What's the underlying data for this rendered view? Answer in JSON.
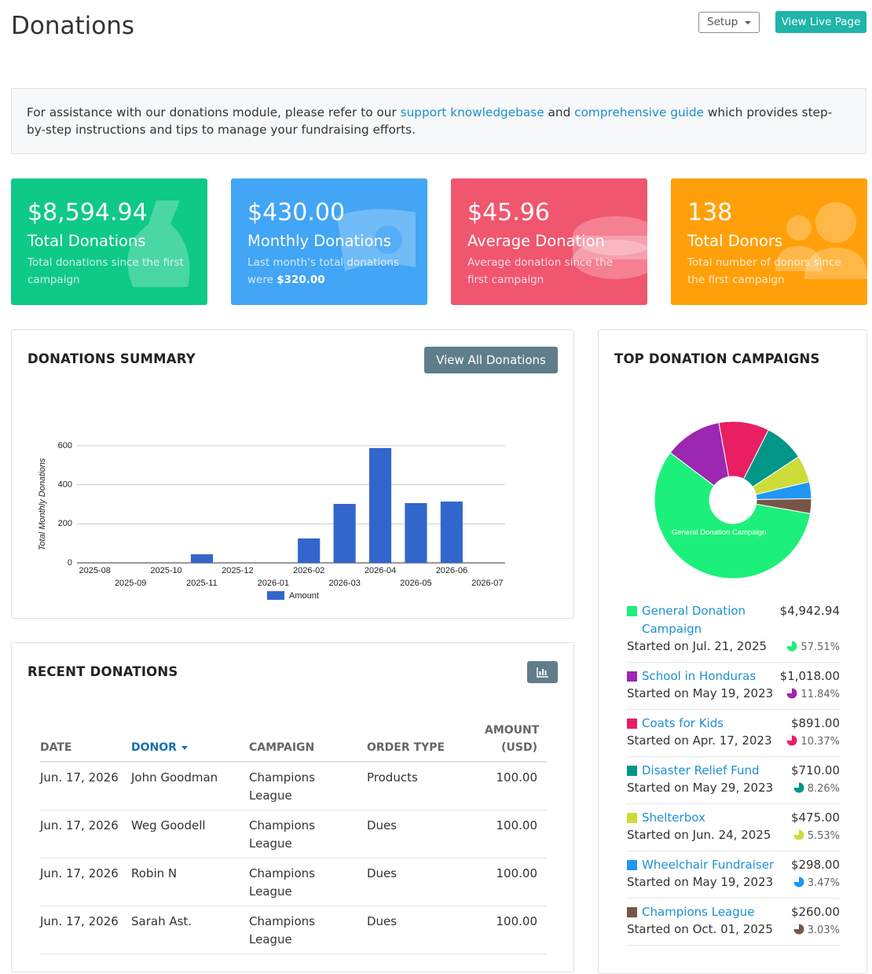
{
  "header": {
    "title": "Donations",
    "setup_button": "Setup",
    "live_button": "View Live Page"
  },
  "notice": {
    "text_before": "For assistance with our donations module, please refer to our",
    "link_1": "support knowledgebase",
    "text_middle": "and",
    "link_2": "comprehensive guide",
    "text_after": "which provides step-by-step instructions and tips to manage your fundraising efforts."
  },
  "stats": [
    {
      "value": "$8,594.94",
      "label": "Total Donations",
      "description": "Total donations since the first campaign"
    },
    {
      "value": "$430.00",
      "label": "Monthly Donations",
      "description": "Last month's total donations were",
      "description_strong": "$320.00"
    },
    {
      "value": "$45.96",
      "label": "Average Donation",
      "description": "Average donation since the first campaign"
    },
    {
      "value": "138",
      "label": "Total Donors",
      "description": "Total number of donors since the first campaign"
    }
  ],
  "summary": {
    "title": "DONATIONS SUMMARY",
    "button": "View All Donations",
    "chart": {
      "type": "bar",
      "y_label": "Total Monthly Donations",
      "categories": [
        "2025-08",
        "2025-09",
        "2025-10",
        "2025-11",
        "2025-12",
        "2026-01",
        "2026-02",
        "2026-03",
        "2026-04",
        "2026-05",
        "2026-06",
        "2026-07"
      ],
      "series": [
        {
          "name": "Amount",
          "color": "#3366cc",
          "values": [
            0,
            0,
            0,
            44,
            0,
            0,
            125,
            302,
            588,
            306,
            314,
            0
          ]
        }
      ],
      "ylim": [
        0,
        600
      ],
      "yticks": [
        0,
        200,
        400,
        600
      ],
      "grid": true
    }
  },
  "recent": {
    "title": "RECENT DONATIONS",
    "table": {
      "columns": [
        "DATE",
        "DONOR",
        "CAMPAIGN",
        "ORDER TYPE",
        "AMOUNT (USD)"
      ],
      "rows": [
        [
          "Jun. 17, 2026",
          "John Goodman",
          "Champions League",
          "Products",
          "100.00"
        ],
        [
          "Jun. 17, 2026",
          "Weg Goodell",
          "Champions League",
          "Dues",
          "100.00"
        ],
        [
          "Jun. 17, 2026",
          "Robin N",
          "Champions League",
          "Dues",
          "100.00"
        ],
        [
          "Jun. 17, 2026",
          "Sarah Ast.",
          "Champions League",
          "Dues",
          "100.00"
        ]
      ]
    }
  },
  "campaigns": {
    "title": "TOP DONATION CAMPAIGNS",
    "chart": {
      "type": "pie",
      "categories": [
        "General Donation Campaign",
        "School in Honduras",
        "Coats for Kids",
        "Disaster Relief Fund",
        "Shelterbox",
        "Wheelchair Fundraiser",
        "Champions League"
      ],
      "values": [
        57.51,
        11.84,
        10.37,
        8.26,
        5.53,
        3.47,
        3.03
      ],
      "value_labels": [
        "57.51%",
        "11.84%",
        "10.37%",
        "8.26%",
        "5.53%",
        "3.47%",
        "3.03%"
      ],
      "colors": [
        "#1df07a",
        "#9c27b0",
        "#e91e63",
        "#009688",
        "#cddc39",
        "#2196f3",
        "#795548"
      ]
    },
    "items": [
      {
        "amount": "$4,942.94",
        "started": "Started on Jul. 21, 2025"
      },
      {
        "amount": "$1,018.00",
        "started": "Started on May 19, 2023"
      },
      {
        "amount": "$891.00",
        "started": "Started on Apr. 17, 2023"
      },
      {
        "amount": "$710.00",
        "started": "Started on May 29, 2023"
      },
      {
        "amount": "$475.00",
        "started": "Started on Jun. 24, 2025"
      },
      {
        "amount": "$298.00",
        "started": "Started on May 19, 2023"
      },
      {
        "amount": "$260.00",
        "started": "Started on Oct. 01, 2025"
      }
    ]
  }
}
